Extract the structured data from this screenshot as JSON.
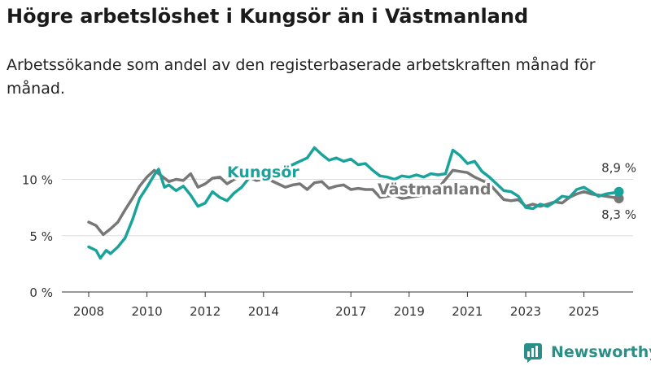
{
  "title": "Högre arbetslöshet i Kungsör än i Västmanland",
  "subtitle": "Arbetssökande som andel av den registerbaserade arbetskraften månad för månad.",
  "brand": {
    "name": "Newsworthy",
    "icon": "newsworthy-logo-icon",
    "color": "#2a8f86"
  },
  "colors": {
    "kungsor": "#1aa39a",
    "vastmanland": "#777777",
    "grid": "#dcdcdc",
    "axis": "#333333"
  },
  "chart_data": {
    "type": "line",
    "title": "Högre arbetslöshet i Kungsör än i Västmanland",
    "xlabel": "",
    "ylabel": "",
    "x_range": [
      2008,
      2026.25
    ],
    "ylim": [
      0,
      12.5
    ],
    "y_ticks": [
      {
        "value": 0,
        "label": "0 %"
      },
      {
        "value": 5,
        "label": "5 %"
      },
      {
        "value": 10,
        "label": "10 %"
      }
    ],
    "x_ticks": [
      {
        "value": 2008,
        "label": "2008"
      },
      {
        "value": 2010,
        "label": "2010"
      },
      {
        "value": 2012,
        "label": "2012"
      },
      {
        "value": 2014,
        "label": "2014"
      },
      {
        "value": 2017,
        "label": "2017"
      },
      {
        "value": 2019,
        "label": "2019"
      },
      {
        "value": 2021,
        "label": "2021"
      },
      {
        "value": 2023,
        "label": "2023"
      },
      {
        "value": 2025,
        "label": "2025"
      }
    ],
    "series": [
      {
        "name": "Västmanland",
        "label": "Västmanland",
        "color": "#777777",
        "end_label": "8,3 %",
        "points": [
          [
            2008.0,
            6.2
          ],
          [
            2008.25,
            5.9
          ],
          [
            2008.5,
            5.1
          ],
          [
            2008.75,
            5.6
          ],
          [
            2009.0,
            6.2
          ],
          [
            2009.25,
            7.3
          ],
          [
            2009.5,
            8.3
          ],
          [
            2009.75,
            9.4
          ],
          [
            2010.0,
            10.2
          ],
          [
            2010.25,
            10.8
          ],
          [
            2010.5,
            10.3
          ],
          [
            2010.75,
            9.8
          ],
          [
            2011.0,
            10.0
          ],
          [
            2011.25,
            9.9
          ],
          [
            2011.5,
            10.5
          ],
          [
            2011.75,
            9.3
          ],
          [
            2012.0,
            9.6
          ],
          [
            2012.25,
            10.1
          ],
          [
            2012.5,
            10.2
          ],
          [
            2012.75,
            9.6
          ],
          [
            2013.0,
            10.0
          ],
          [
            2013.25,
            10.3
          ],
          [
            2013.5,
            10.2
          ],
          [
            2013.75,
            9.9
          ],
          [
            2014.0,
            10.0
          ],
          [
            2014.25,
            9.9
          ],
          [
            2014.5,
            9.6
          ],
          [
            2014.75,
            9.3
          ],
          [
            2015.0,
            9.5
          ],
          [
            2015.25,
            9.6
          ],
          [
            2015.5,
            9.1
          ],
          [
            2015.75,
            9.7
          ],
          [
            2016.0,
            9.8
          ],
          [
            2016.25,
            9.2
          ],
          [
            2016.5,
            9.4
          ],
          [
            2016.75,
            9.5
          ],
          [
            2017.0,
            9.1
          ],
          [
            2017.25,
            9.2
          ],
          [
            2017.5,
            9.1
          ],
          [
            2017.75,
            9.1
          ],
          [
            2018.0,
            8.4
          ],
          [
            2018.25,
            8.5
          ],
          [
            2018.5,
            8.6
          ],
          [
            2018.75,
            8.3
          ],
          [
            2019.0,
            8.4
          ],
          [
            2019.25,
            8.5
          ],
          [
            2019.5,
            8.6
          ],
          [
            2019.75,
            8.8
          ],
          [
            2020.0,
            9.2
          ],
          [
            2020.25,
            10.0
          ],
          [
            2020.5,
            10.8
          ],
          [
            2020.75,
            10.7
          ],
          [
            2021.0,
            10.6
          ],
          [
            2021.25,
            10.2
          ],
          [
            2021.5,
            9.9
          ],
          [
            2021.75,
            9.6
          ],
          [
            2022.0,
            8.9
          ],
          [
            2022.25,
            8.2
          ],
          [
            2022.5,
            8.1
          ],
          [
            2022.75,
            8.2
          ],
          [
            2023.0,
            7.6
          ],
          [
            2023.25,
            7.8
          ],
          [
            2023.5,
            7.6
          ],
          [
            2023.75,
            7.8
          ],
          [
            2024.0,
            8.0
          ],
          [
            2024.25,
            7.9
          ],
          [
            2024.5,
            8.4
          ],
          [
            2024.75,
            8.7
          ],
          [
            2025.0,
            8.9
          ],
          [
            2025.25,
            8.7
          ],
          [
            2025.5,
            8.6
          ],
          [
            2025.75,
            8.5
          ],
          [
            2026.0,
            8.4
          ],
          [
            2026.2,
            8.3
          ]
        ]
      },
      {
        "name": "Kungsör",
        "label": "Kungsör",
        "color": "#1aa39a",
        "end_label": "8,9 %",
        "points": [
          [
            2008.0,
            4.0
          ],
          [
            2008.25,
            3.7
          ],
          [
            2008.4,
            3.0
          ],
          [
            2008.6,
            3.7
          ],
          [
            2008.75,
            3.4
          ],
          [
            2009.0,
            4.0
          ],
          [
            2009.25,
            4.8
          ],
          [
            2009.5,
            6.4
          ],
          [
            2009.75,
            8.3
          ],
          [
            2010.0,
            9.3
          ],
          [
            2010.25,
            10.4
          ],
          [
            2010.4,
            10.9
          ],
          [
            2010.6,
            9.3
          ],
          [
            2010.75,
            9.5
          ],
          [
            2011.0,
            9.0
          ],
          [
            2011.25,
            9.4
          ],
          [
            2011.5,
            8.6
          ],
          [
            2011.75,
            7.6
          ],
          [
            2012.0,
            7.9
          ],
          [
            2012.25,
            8.9
          ],
          [
            2012.5,
            8.4
          ],
          [
            2012.75,
            8.1
          ],
          [
            2013.0,
            8.8
          ],
          [
            2013.25,
            9.3
          ],
          [
            2013.5,
            10.1
          ],
          [
            2013.75,
            10.6
          ],
          [
            2014.0,
            10.8
          ],
          [
            2014.25,
            10.6
          ],
          [
            2014.5,
            10.9
          ],
          [
            2014.75,
            11.1
          ],
          [
            2015.0,
            11.3
          ],
          [
            2015.25,
            11.6
          ],
          [
            2015.5,
            11.9
          ],
          [
            2015.75,
            12.8
          ],
          [
            2016.0,
            12.2
          ],
          [
            2016.25,
            11.7
          ],
          [
            2016.5,
            11.9
          ],
          [
            2016.75,
            11.6
          ],
          [
            2017.0,
            11.8
          ],
          [
            2017.25,
            11.3
          ],
          [
            2017.5,
            11.4
          ],
          [
            2017.75,
            10.8
          ],
          [
            2018.0,
            10.3
          ],
          [
            2018.25,
            10.2
          ],
          [
            2018.5,
            10.0
          ],
          [
            2018.75,
            10.3
          ],
          [
            2019.0,
            10.2
          ],
          [
            2019.25,
            10.4
          ],
          [
            2019.5,
            10.2
          ],
          [
            2019.75,
            10.5
          ],
          [
            2020.0,
            10.4
          ],
          [
            2020.25,
            10.5
          ],
          [
            2020.5,
            12.6
          ],
          [
            2020.75,
            12.1
          ],
          [
            2021.0,
            11.4
          ],
          [
            2021.25,
            11.6
          ],
          [
            2021.5,
            10.7
          ],
          [
            2021.75,
            10.2
          ],
          [
            2022.0,
            9.6
          ],
          [
            2022.25,
            9.0
          ],
          [
            2022.5,
            8.9
          ],
          [
            2022.75,
            8.5
          ],
          [
            2023.0,
            7.5
          ],
          [
            2023.25,
            7.4
          ],
          [
            2023.5,
            7.8
          ],
          [
            2023.75,
            7.6
          ],
          [
            2024.0,
            8.0
          ],
          [
            2024.25,
            8.5
          ],
          [
            2024.5,
            8.4
          ],
          [
            2024.75,
            9.1
          ],
          [
            2025.0,
            9.3
          ],
          [
            2025.25,
            8.9
          ],
          [
            2025.5,
            8.5
          ],
          [
            2025.75,
            8.7
          ],
          [
            2026.0,
            8.8
          ],
          [
            2026.2,
            8.9
          ]
        ]
      }
    ]
  }
}
